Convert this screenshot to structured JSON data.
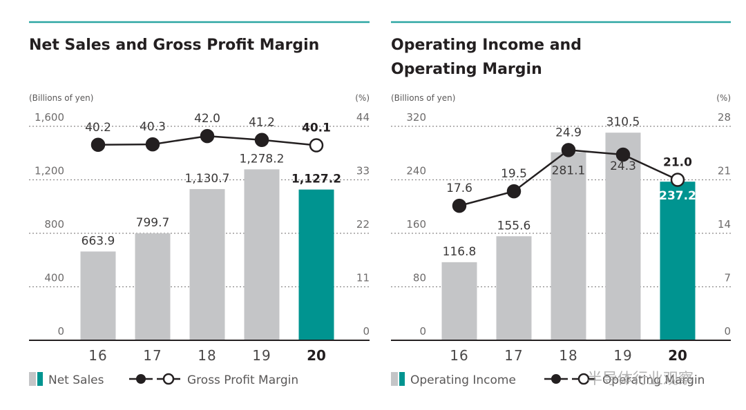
{
  "colors": {
    "accent": "#009490",
    "bar_gray": "#c4c5c7",
    "rule": "#2ba6a2",
    "line": "#231f20"
  },
  "chart_data": [
    {
      "type": "bar",
      "title": "Net Sales and Gross Profit Margin",
      "ylabel": "(Billions of yen)",
      "y2label": "(%)",
      "categories": [
        "16",
        "17",
        "18",
        "19",
        "20"
      ],
      "highlight_category": "20",
      "ylim": [
        0,
        1600
      ],
      "yticks": [
        "0",
        "400",
        "800",
        "1,200",
        "1,600"
      ],
      "y2lim": [
        0,
        44
      ],
      "y2ticks": [
        "0",
        "11",
        "22",
        "33",
        "44"
      ],
      "grid": true,
      "series": [
        {
          "name": "Net Sales",
          "type": "bar",
          "axis": "left",
          "values": [
            663.9,
            799.7,
            1130.7,
            1278.2,
            1127.2
          ],
          "labels": [
            "663.9",
            "799.7",
            "1,130.7",
            "1,278.2",
            "1,127.2"
          ]
        },
        {
          "name": "Gross Profit Margin",
          "type": "line",
          "axis": "right",
          "values": [
            40.2,
            40.3,
            42.0,
            41.2,
            40.1
          ],
          "labels": [
            "40.2",
            "40.3",
            "42.0",
            "41.2",
            "40.1"
          ]
        }
      ],
      "legend": {
        "position": "bottom-left",
        "bar_label": "Net Sales",
        "line_label": "Gross Profit Margin"
      }
    },
    {
      "type": "bar",
      "title": "Operating Income and Operating Margin",
      "title_lines": [
        "Operating Income and",
        "Operating Margin"
      ],
      "ylabel": "(Billions of yen)",
      "y2label": "(%)",
      "categories": [
        "16",
        "17",
        "18",
        "19",
        "20"
      ],
      "highlight_category": "20",
      "ylim": [
        0,
        320
      ],
      "yticks": [
        "0",
        "80",
        "160",
        "240",
        "320"
      ],
      "y2lim": [
        0,
        28
      ],
      "y2ticks": [
        "0",
        "7",
        "14",
        "21",
        "28"
      ],
      "grid": true,
      "series": [
        {
          "name": "Operating Income",
          "type": "bar",
          "axis": "left",
          "values": [
            116.8,
            155.6,
            281.1,
            310.5,
            237.2
          ],
          "labels": [
            "116.8",
            "155.6",
            "281.1",
            "310.5",
            "237.2"
          ]
        },
        {
          "name": "Operating Margin",
          "type": "line",
          "axis": "right",
          "values": [
            17.6,
            19.5,
            24.9,
            24.3,
            21.0
          ],
          "labels": [
            "17.6",
            "19.5",
            "24.9",
            "24.3",
            "21.0"
          ]
        }
      ],
      "legend": {
        "position": "bottom-left",
        "bar_label": "Operating Income",
        "line_label": "Operating Margin"
      }
    }
  ],
  "watermark": "半导体行业观察"
}
